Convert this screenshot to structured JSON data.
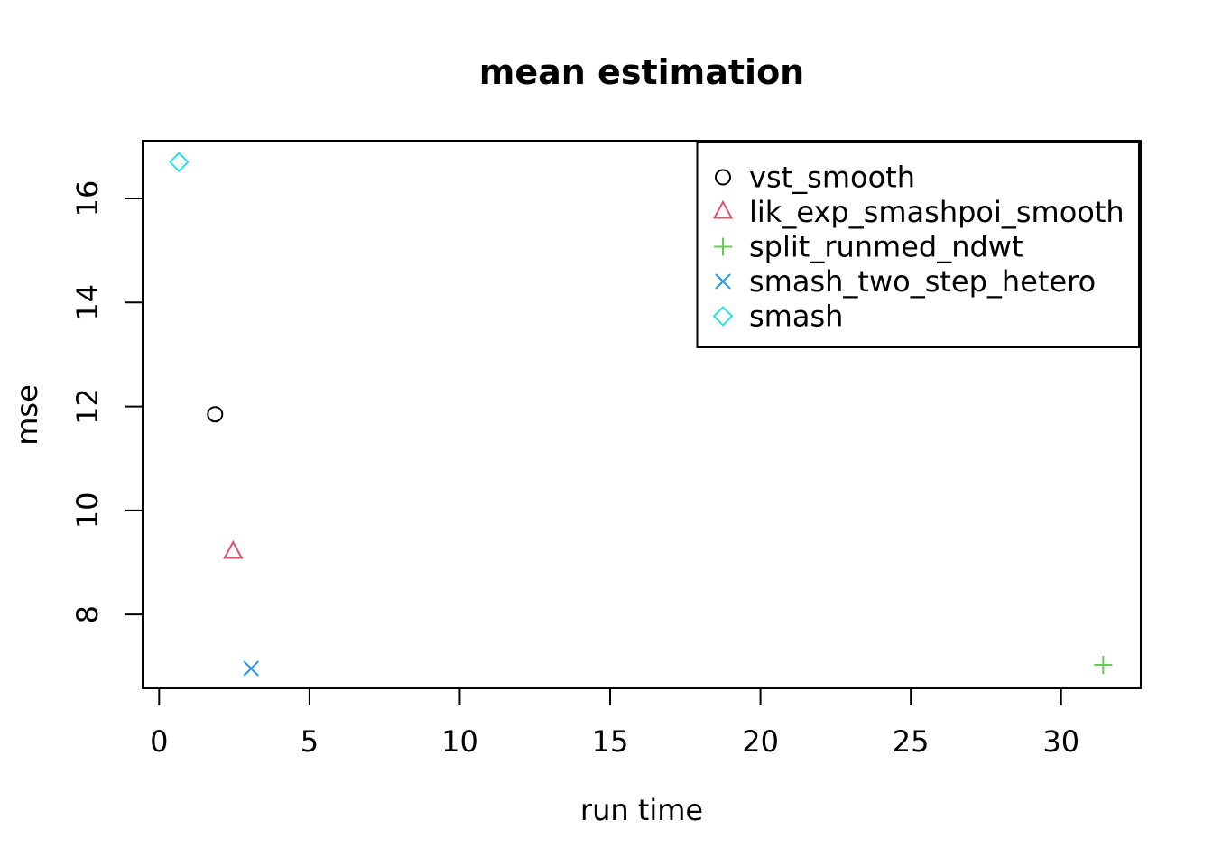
{
  "chart_data": {
    "type": "scatter",
    "title": "mean estimation",
    "xlabel": "run time",
    "ylabel": "mse",
    "xlim": [
      -0.55,
      32.65
    ],
    "ylim": [
      6.58,
      17.11
    ],
    "x_ticks": [
      0,
      5,
      10,
      15,
      20,
      25,
      30
    ],
    "y_ticks": [
      8,
      10,
      12,
      14,
      16
    ],
    "grid": false,
    "legend_position": "top-right",
    "axis_color": "#000000",
    "background_color": "#ffffff",
    "series": [
      {
        "name": "vst_smooth",
        "marker": "open-circle",
        "color": "#000000",
        "points": [
          {
            "x": 1.86,
            "y": 11.85
          }
        ]
      },
      {
        "name": "lik_exp_smashpoi_smooth",
        "marker": "open-triangle",
        "color": "#DF536B",
        "points": [
          {
            "x": 2.46,
            "y": 9.2
          }
        ]
      },
      {
        "name": "split_runmed_ndwt",
        "marker": "plus",
        "color": "#61D04F",
        "points": [
          {
            "x": 31.4,
            "y": 7.03
          }
        ]
      },
      {
        "name": "smash_two_step_hetero",
        "marker": "x",
        "color": "#2297E6",
        "points": [
          {
            "x": 3.06,
            "y": 6.96
          }
        ]
      },
      {
        "name": "smash",
        "marker": "open-diamond",
        "color": "#28E2E5",
        "points": [
          {
            "x": 0.66,
            "y": 16.7
          }
        ]
      }
    ]
  }
}
